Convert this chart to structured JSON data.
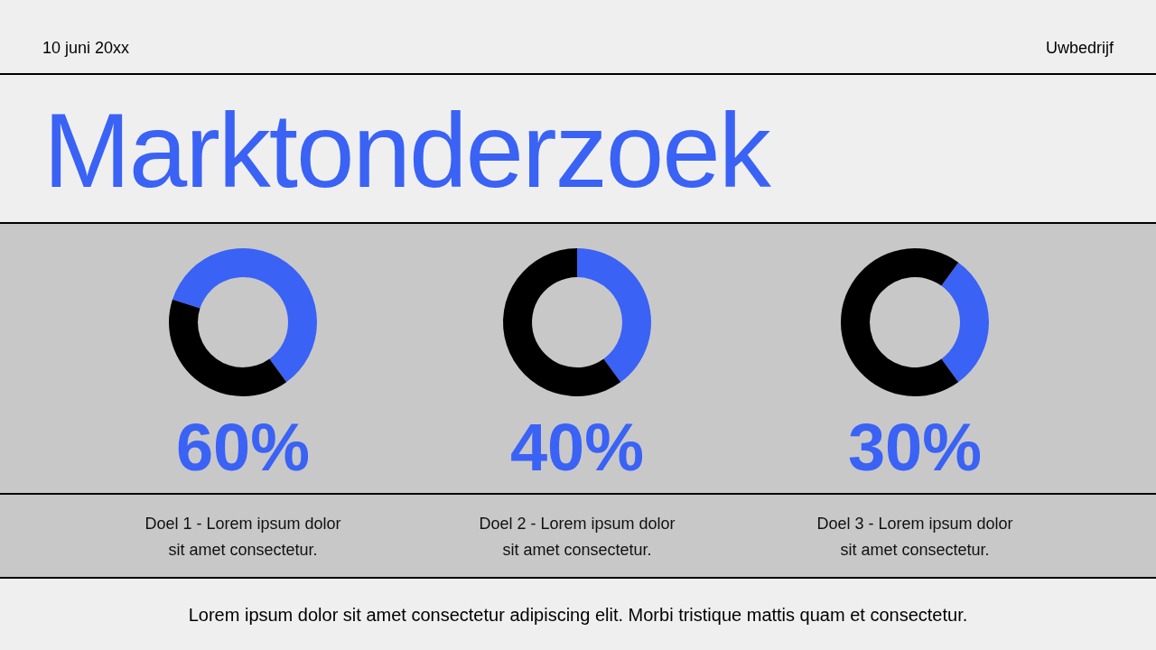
{
  "chart_data": [
    {
      "type": "other",
      "title": "Marktonderzoek",
      "annotations": [
        "10 juni 20xx",
        "Uwbedrijf",
        "Lorem ipsum dolor sit amet consectetur adipiscing elit. Morbi tristique mattis quam et consectetur."
      ]
    },
    {
      "type": "donut",
      "categories": [
        null,
        null
      ],
      "values": [
        60,
        40
      ],
      "colors": [
        "#3a62f5",
        "#000000"
      ],
      "value_labels": [
        "60%",
        null
      ],
      "annotations": [
        "Doel 1 - Lorem ipsum dolor sit amet consectetur."
      ]
    },
    {
      "type": "donut",
      "categories": [
        null,
        null
      ],
      "values": [
        40,
        60
      ],
      "colors": [
        "#3a62f5",
        "#000000"
      ],
      "value_labels": [
        "40%",
        null
      ],
      "annotations": [
        "Doel 2 - Lorem ipsum dolor sit amet consectetur."
      ]
    },
    {
      "type": "donut",
      "categories": [
        null,
        null
      ],
      "values": [
        30,
        70
      ],
      "colors": [
        "#3a62f5",
        "#000000"
      ],
      "value_labels": [
        "30%",
        null
      ],
      "annotations": [
        "Doel 3 - Lorem ipsum dolor sit amet consectetur."
      ]
    }
  ]
}
